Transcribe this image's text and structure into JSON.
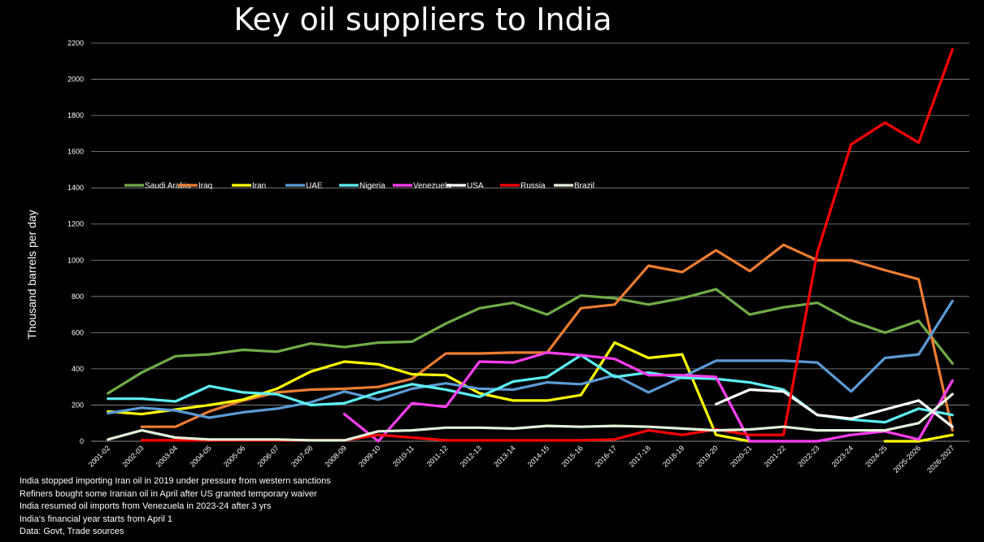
{
  "chart_data": {
    "type": "line",
    "title": "Key oil suppliers to India",
    "xlabel": "",
    "ylabel": "Thousand barrels per day",
    "ylim": [
      0,
      2200
    ],
    "yticks": [
      0,
      200,
      400,
      600,
      800,
      1000,
      1200,
      1400,
      1600,
      1800,
      2000,
      2200
    ],
    "grid": true,
    "legend_placement": "middle-left",
    "categories": [
      "2001-02",
      "2002-03",
      "2003-04",
      "2004-05",
      "2005-06",
      "2006-07",
      "2007-08",
      "2008-09",
      "2009-10",
      "2010-11",
      "2011-12",
      "2012-13",
      "2013-14",
      "2014-15",
      "2015-16",
      "2016-17",
      "2017-18",
      "2018-19",
      "2019-20",
      "2020-21",
      "2021-22",
      "2022-23",
      "2023-24",
      "2024-25",
      "2025-2026",
      "2026-2027"
    ],
    "series": [
      {
        "name": "Saudi Arabia",
        "color": "#70AD47",
        "values": [
          265,
          380,
          470,
          480,
          505,
          495,
          540,
          520,
          545,
          550,
          650,
          735,
          765,
          700,
          805,
          790,
          755,
          790,
          840,
          700,
          740,
          765,
          665,
          600,
          665,
          430
        ]
      },
      {
        "name": "Iraq",
        "color": "#ED7D31",
        "values": [
          null,
          80,
          80,
          165,
          225,
          270,
          285,
          290,
          300,
          345,
          485,
          485,
          490,
          490,
          735,
          755,
          970,
          935,
          1055,
          940,
          1085,
          1000,
          1000,
          945,
          895,
          60
        ]
      },
      {
        "name": "Iran",
        "color": "#FFFF00",
        "values": [
          165,
          150,
          175,
          200,
          230,
          290,
          385,
          440,
          425,
          370,
          365,
          265,
          225,
          225,
          255,
          545,
          460,
          480,
          35,
          0,
          null,
          null,
          null,
          0,
          0,
          35
        ]
      },
      {
        "name": "UAE",
        "color": "#5B9BD5",
        "values": [
          155,
          185,
          170,
          130,
          160,
          180,
          215,
          275,
          230,
          290,
          320,
          290,
          285,
          325,
          315,
          365,
          270,
          355,
          445,
          445,
          445,
          435,
          275,
          460,
          480,
          775
        ]
      },
      {
        "name": "Nigeria",
        "color": "#5CF0F4",
        "values": [
          235,
          235,
          220,
          305,
          270,
          260,
          200,
          210,
          270,
          315,
          285,
          245,
          330,
          355,
          475,
          355,
          380,
          350,
          345,
          325,
          285,
          145,
          120,
          105,
          180,
          145
        ]
      },
      {
        "name": "Venezuela",
        "color": "#FF3EF1",
        "values": [
          null,
          null,
          null,
          null,
          null,
          null,
          null,
          150,
          0,
          210,
          190,
          440,
          435,
          490,
          475,
          455,
          365,
          365,
          355,
          0,
          0,
          0,
          35,
          55,
          10,
          335
        ]
      },
      {
        "name": "USA",
        "color": "#FFFFFF",
        "values": [
          null,
          null,
          null,
          null,
          null,
          null,
          null,
          null,
          null,
          null,
          null,
          null,
          null,
          null,
          null,
          null,
          null,
          null,
          205,
          285,
          275,
          145,
          125,
          175,
          225,
          80
        ]
      },
      {
        "name": "Russia",
        "color": "#FF0000",
        "values": [
          null,
          5,
          5,
          5,
          5,
          5,
          5,
          5,
          35,
          20,
          5,
          5,
          5,
          5,
          5,
          10,
          60,
          35,
          65,
          35,
          35,
          1045,
          1640,
          1760,
          1650,
          2165
        ]
      },
      {
        "name": "Brazil",
        "color": "#E2F0D9",
        "values": [
          10,
          60,
          20,
          10,
          10,
          10,
          5,
          5,
          55,
          60,
          75,
          75,
          70,
          85,
          80,
          85,
          80,
          70,
          60,
          65,
          80,
          60,
          60,
          60,
          100,
          260
        ]
      }
    ]
  },
  "notes": [
    "India stopped importing Iran oil in 2019 under pressure from western sanctions",
    "Refiners bought some Iranian oil in April after US granted temporary waiver",
    "India resumed oil imports from Venezuela in 2023-24 after 3 yrs",
    "India's financial year starts from April 1",
    "Data: Govt, Trade sources"
  ]
}
